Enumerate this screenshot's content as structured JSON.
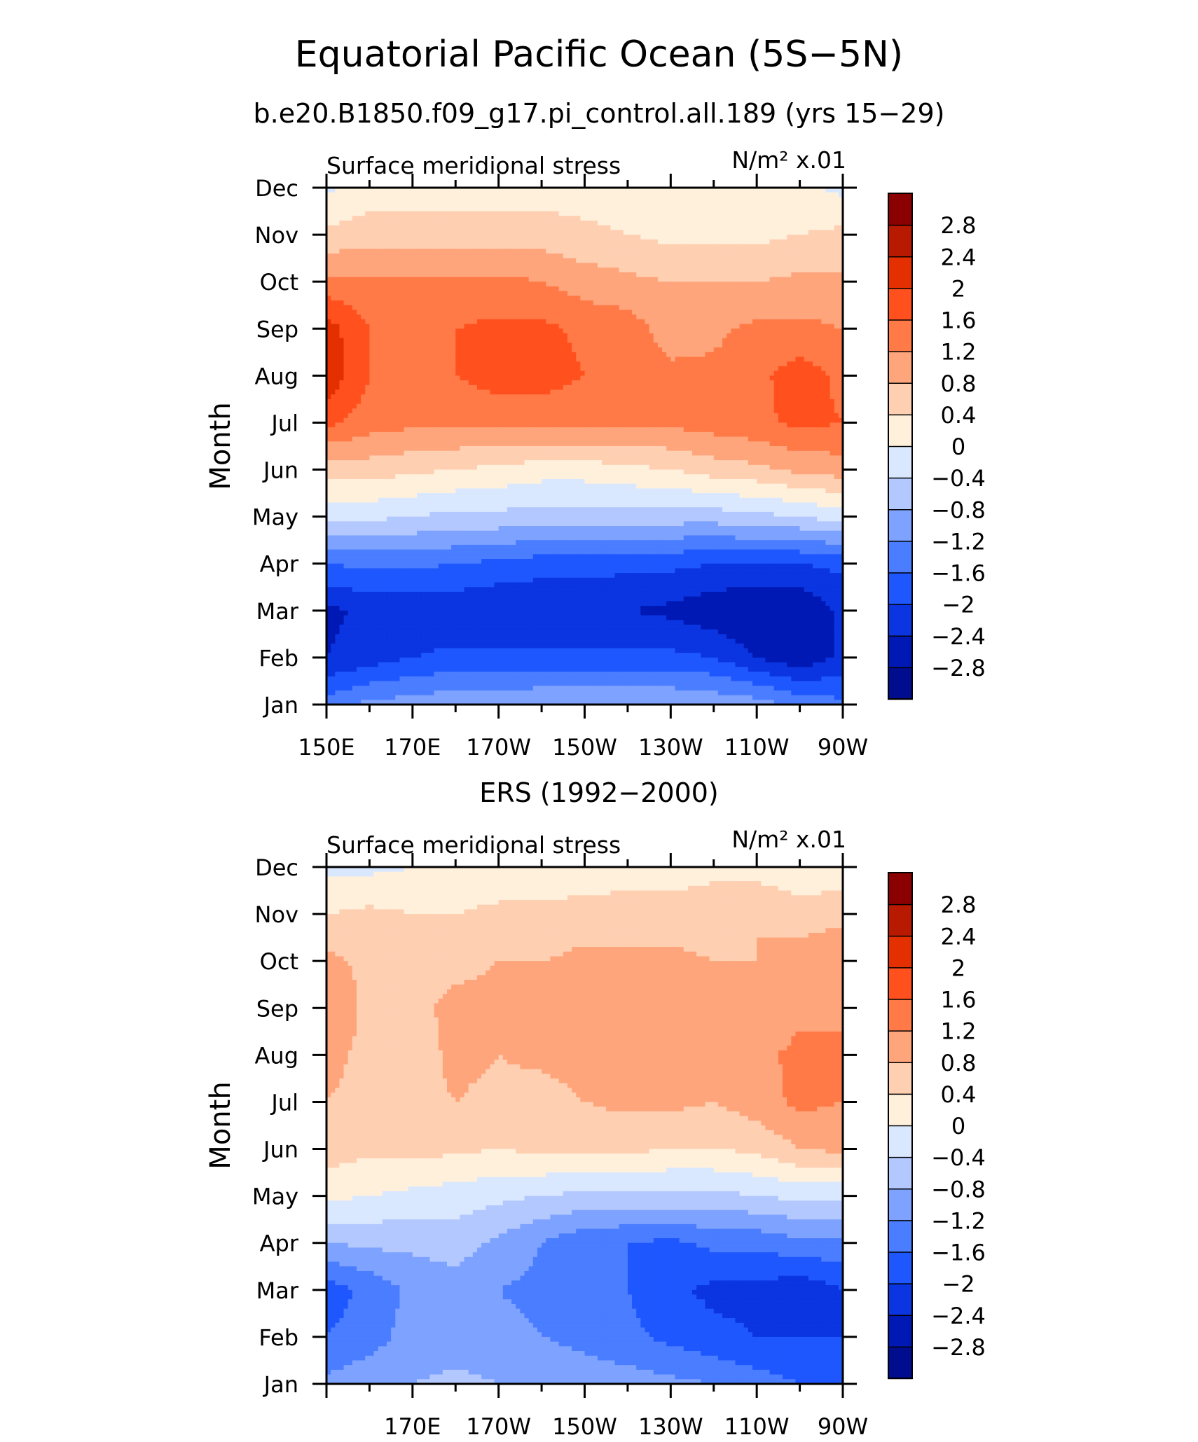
{
  "figure": {
    "title": "Equatorial Pacific Ocean (5S−5N)",
    "subtitle": "b.e20.B1850.f09_g17.pi_control.all.189 (yrs 15−29)"
  },
  "chart_data": [
    {
      "type": "heatmap",
      "panel": "model",
      "title": "",
      "left_label": "Surface meridional stress",
      "units_label": "N/m² x.01",
      "xlabel": "",
      "ylabel": "Month",
      "x_ticks": [
        "150E",
        "170E",
        "170W",
        "150W",
        "130W",
        "110W",
        "90W"
      ],
      "y_ticks": [
        "Jan",
        "Feb",
        "Mar",
        "Apr",
        "May",
        "Jun",
        "Jul",
        "Aug",
        "Sep",
        "Oct",
        "Nov",
        "Dec"
      ],
      "x_range": [
        "150E",
        "90W"
      ],
      "contour_levels": [
        -2.8,
        -2.4,
        -2,
        -1.6,
        -1.2,
        -0.8,
        -0.4,
        0,
        0.4,
        0.8,
        1.2,
        1.6,
        2,
        2.4,
        2.8
      ],
      "colorbar_labels": [
        "2.8",
        "2.4",
        "2",
        "1.6",
        "1.2",
        "0.8",
        "0.4",
        "0",
        "−0.4",
        "−0.8",
        "−1.2",
        "−1.6",
        "−2",
        "−2.4",
        "−2.8"
      ],
      "x_nodes_deg_east": [
        150,
        160,
        170,
        180,
        190,
        200,
        210,
        220,
        230,
        240,
        250,
        260,
        270
      ],
      "values_by_month": [
        [
          -1.4,
          -1.1,
          -1.0,
          -0.9,
          -0.9,
          -0.8,
          -0.8,
          -0.8,
          -0.8,
          -0.9,
          -1.0,
          -1.3,
          -1.5
        ],
        [
          -2.4,
          -2.2,
          -2.0,
          -1.9,
          -1.9,
          -1.9,
          -1.9,
          -1.9,
          -1.9,
          -2.0,
          -2.4,
          -2.7,
          -2.3
        ],
        [
          -2.5,
          -2.3,
          -2.3,
          -2.3,
          -2.4,
          -2.4,
          -2.4,
          -2.4,
          -2.5,
          -2.7,
          -2.8,
          -2.8,
          -2.3
        ],
        [
          -1.6,
          -1.5,
          -1.5,
          -1.6,
          -1.7,
          -1.8,
          -1.8,
          -1.9,
          -1.9,
          -2.0,
          -2.0,
          -2.0,
          -1.9
        ],
        [
          -0.2,
          -0.3,
          -0.4,
          -0.5,
          -0.5,
          -0.6,
          -0.6,
          -0.6,
          -0.6,
          -0.6,
          -0.5,
          -0.4,
          -0.2
        ],
        [
          0.6,
          0.6,
          0.5,
          0.4,
          0.3,
          0.2,
          0.2,
          0.3,
          0.4,
          0.6,
          0.7,
          0.9,
          1.0
        ],
        [
          1.7,
          1.4,
          1.3,
          1.3,
          1.3,
          1.3,
          1.3,
          1.3,
          1.3,
          1.4,
          1.5,
          1.7,
          1.6
        ],
        [
          2.3,
          1.6,
          1.5,
          1.6,
          1.8,
          1.8,
          1.6,
          1.4,
          1.3,
          1.3,
          1.5,
          1.8,
          1.5
        ],
        [
          2.2,
          1.6,
          1.5,
          1.6,
          1.7,
          1.7,
          1.5,
          1.4,
          1.0,
          1.1,
          1.3,
          1.3,
          1.2
        ],
        [
          1.3,
          1.3,
          1.3,
          1.3,
          1.3,
          1.2,
          1.0,
          0.9,
          0.8,
          0.8,
          0.8,
          0.9,
          0.9
        ],
        [
          0.5,
          0.6,
          0.6,
          0.6,
          0.6,
          0.6,
          0.5,
          0.4,
          0.3,
          0.3,
          0.3,
          0.4,
          0.5
        ],
        [
          -0.1,
          0.2,
          0.2,
          0.2,
          0.2,
          0.2,
          0.2,
          0.2,
          0.1,
          0.1,
          0.1,
          0.1,
          -0.1
        ]
      ]
    },
    {
      "type": "heatmap",
      "panel": "observed",
      "title": "ERS (1992−2000)",
      "left_label": "Surface meridional stress",
      "units_label": "N/m² x.01",
      "xlabel": "",
      "ylabel": "Month",
      "x_ticks": [
        "170E",
        "170W",
        "150W",
        "130W",
        "110W",
        "90W"
      ],
      "y_ticks": [
        "Jan",
        "Feb",
        "Mar",
        "Apr",
        "May",
        "Jun",
        "Jul",
        "Aug",
        "Sep",
        "Oct",
        "Nov",
        "Dec"
      ],
      "x_range": [
        "150E",
        "90W"
      ],
      "contour_levels": [
        -2.8,
        -2.4,
        -2,
        -1.6,
        -1.2,
        -0.8,
        -0.4,
        0,
        0.4,
        0.8,
        1.2,
        1.6,
        2,
        2.4,
        2.8
      ],
      "colorbar_labels": [
        "2.8",
        "2.4",
        "2",
        "1.6",
        "1.2",
        "0.8",
        "0.4",
        "0",
        "−0.4",
        "−0.8",
        "−1.2",
        "−1.6",
        "−2",
        "−2.4",
        "−2.8"
      ],
      "x_nodes_deg_east": [
        150,
        160,
        170,
        180,
        190,
        200,
        210,
        220,
        230,
        240,
        250,
        260,
        270
      ],
      "values_by_month": [
        [
          -1.1,
          -0.9,
          -0.8,
          -0.7,
          -0.8,
          -0.9,
          -1.0,
          -1.0,
          -1.1,
          -1.2,
          -1.4,
          -1.6,
          -1.7
        ],
        [
          -1.6,
          -1.4,
          -1.0,
          -1.0,
          -1.1,
          -1.2,
          -1.3,
          -1.5,
          -1.7,
          -1.9,
          -2.0,
          -2.0,
          -2.0
        ],
        [
          -1.8,
          -1.5,
          -1.1,
          -1.0,
          -1.2,
          -1.3,
          -1.4,
          -1.6,
          -1.9,
          -2.1,
          -2.1,
          -2.3,
          -2.0
        ],
        [
          -0.8,
          -0.7,
          -0.7,
          -0.6,
          -0.9,
          -1.2,
          -1.5,
          -1.6,
          -1.7,
          -1.5,
          -1.5,
          -1.3,
          -1.3
        ],
        [
          0.1,
          0.0,
          -0.1,
          -0.2,
          -0.3,
          -0.4,
          -0.5,
          -0.5,
          -0.5,
          -0.5,
          -0.4,
          -0.3,
          -0.3
        ],
        [
          0.6,
          0.5,
          0.5,
          0.5,
          0.4,
          0.5,
          0.5,
          0.5,
          0.4,
          0.4,
          0.5,
          0.8,
          0.9
        ],
        [
          0.8,
          0.7,
          0.7,
          0.8,
          0.7,
          0.6,
          0.8,
          0.9,
          0.9,
          0.8,
          1.0,
          1.3,
          1.2
        ],
        [
          0.9,
          0.7,
          0.6,
          0.9,
          0.8,
          0.9,
          1.0,
          1.0,
          1.0,
          0.8,
          1.1,
          1.3,
          1.2
        ],
        [
          1.1,
          0.7,
          0.7,
          0.9,
          0.9,
          0.9,
          1.0,
          1.0,
          1.0,
          0.8,
          0.9,
          1.1,
          1.2
        ],
        [
          0.9,
          0.7,
          0.6,
          0.7,
          0.8,
          0.8,
          0.9,
          0.9,
          0.9,
          0.8,
          0.8,
          1.0,
          1.1
        ],
        [
          0.4,
          0.5,
          0.4,
          0.4,
          0.5,
          0.5,
          0.6,
          0.6,
          0.6,
          0.6,
          0.8,
          0.6,
          0.7
        ],
        [
          -0.1,
          -0.1,
          0.0,
          0.1,
          0.1,
          0.1,
          0.1,
          0.2,
          0.2,
          0.3,
          0.2,
          0.1,
          0.1
        ]
      ]
    }
  ],
  "colors": {
    "palette": [
      "#000d8f",
      "#0019b4",
      "#0a35e0",
      "#1f57ff",
      "#4a7dff",
      "#7ea2ff",
      "#b3c8ff",
      "#d9e8ff",
      "#fff0dc",
      "#ffcfb2",
      "#ffa57c",
      "#ff7a47",
      "#ff501e",
      "#e43000",
      "#b71a00",
      "#8b0000"
    ],
    "axis": "#000000",
    "background": "#ffffff"
  }
}
